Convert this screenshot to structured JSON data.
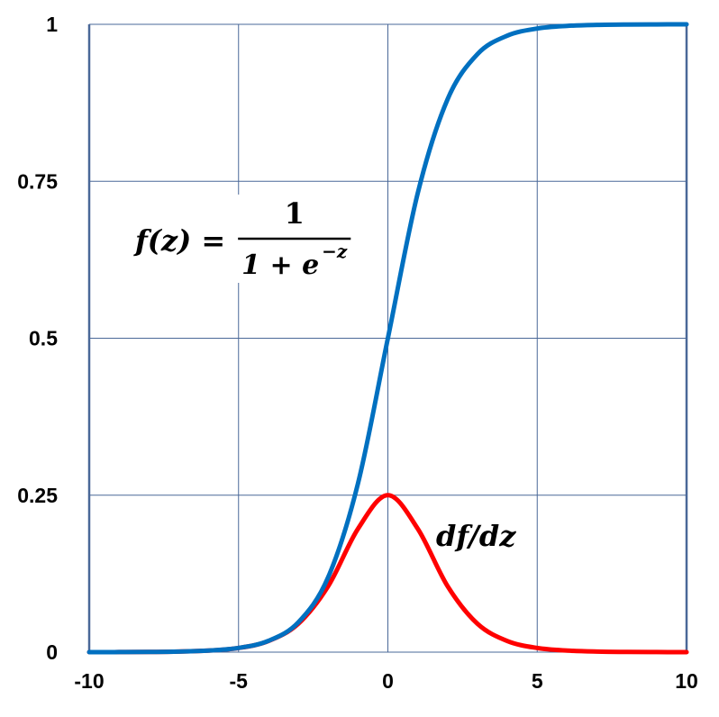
{
  "chart_data": {
    "type": "line",
    "title": "",
    "xlabel": "",
    "ylabel": "",
    "xlim": [
      -10,
      10
    ],
    "ylim": [
      0,
      1
    ],
    "xticks": [
      "-10",
      "-5",
      "0",
      "5",
      "10"
    ],
    "xtick_values": [
      -10,
      -5,
      0,
      5,
      10
    ],
    "yticks": [
      "0",
      "0.25",
      "0.5",
      "0.75",
      "1"
    ],
    "ytick_values": [
      0,
      0.25,
      0.5,
      0.75,
      1
    ],
    "grid": true,
    "x": [
      -10,
      -9,
      -8,
      -7,
      -6,
      -5,
      -4,
      -3,
      -2,
      -1,
      0,
      1,
      2,
      3,
      4,
      5,
      6,
      7,
      8,
      9,
      10
    ],
    "series": [
      {
        "color": "#0070c0",
        "values": [
          0.0,
          0.0001,
          0.0003,
          0.0009,
          0.0025,
          0.0067,
          0.018,
          0.0474,
          0.1192,
          0.2689,
          0.5,
          0.7311,
          0.8808,
          0.9526,
          0.982,
          0.9933,
          0.9975,
          0.9991,
          0.9997,
          0.9999,
          1.0
        ]
      },
      {
        "color": "#ff0000",
        "values": [
          0.0,
          0.0001,
          0.0003,
          0.0009,
          0.0025,
          0.0066,
          0.0177,
          0.0452,
          0.105,
          0.1966,
          0.25,
          0.1966,
          0.105,
          0.0452,
          0.0177,
          0.0066,
          0.0025,
          0.0009,
          0.0003,
          0.0001,
          0.0
        ]
      }
    ],
    "annotations": {
      "sigmoid_lhs": "f(z) =",
      "sigmoid_num": "1",
      "sigmoid_den": "1 + e",
      "sigmoid_exp": "−z",
      "derivative": "df/dz"
    },
    "grid_color": "#4a6898"
  }
}
